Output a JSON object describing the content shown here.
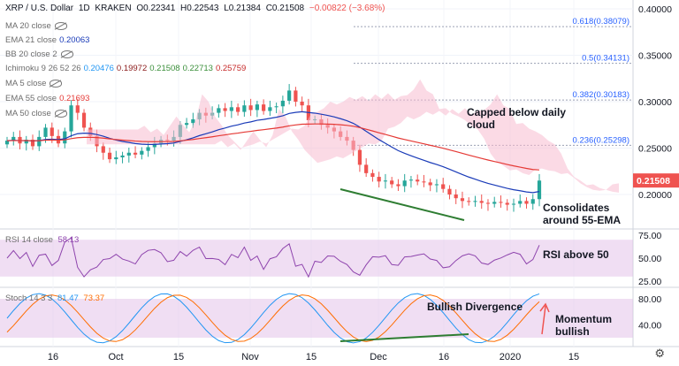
{
  "header": {
    "symbol": "XRP / U.S. Dollar",
    "interval": "1D",
    "exchange": "KRAKEN",
    "o": "O0.22341",
    "h": "H0.22543",
    "l": "L0.21384",
    "c": "C0.21508",
    "change": "−0.00822 (−3.68%)"
  },
  "legend": [
    {
      "label": "MA 20 close",
      "value": "",
      "hidden": true,
      "color": "#2196f3"
    },
    {
      "label": "EMA 21 close",
      "value": "0.20063",
      "hidden": false,
      "color": "#1a3bb8"
    },
    {
      "label": "BB 20 close 2",
      "value": "",
      "hidden": true,
      "color": "#2196f3"
    },
    {
      "label": "Ichimoku 9 26 52 26",
      "values": [
        "0.20476",
        "0.19972",
        "0.21508",
        "0.22713",
        "0.25759"
      ],
      "colors": [
        "#2196f3",
        "#8b1a1a",
        "#3a8f3a",
        "#3a8f3a",
        "#c62828"
      ],
      "hidden": false
    },
    {
      "label": "MA 5 close",
      "value": "",
      "hidden": true,
      "color": "#2196f3"
    },
    {
      "label": "EMA 55 close",
      "value": "0.21693",
      "hidden": false,
      "color": "#e53935"
    },
    {
      "label": "MA 50 close",
      "value": "",
      "hidden": true,
      "color": "#2196f3"
    }
  ],
  "rsi_legend": {
    "label": "RSI 14 close",
    "value": "58.13",
    "color": "#8e44ad"
  },
  "stoch_legend": {
    "label": "Stoch 14 3 3",
    "k": "81.47",
    "d": "73.37",
    "k_color": "#2196f3",
    "d_color": "#ff6d00"
  },
  "annotations": {
    "capped": "Capped below daily cloud",
    "consolidates": "Consolidates around 55-EMA",
    "rsi": "RSI above 50",
    "divergence": "Bullish Divergence",
    "momentum": "Momentum bullish"
  },
  "last_price": "0.21508",
  "colors": {
    "up": "#26a69a",
    "down": "#ef5350",
    "cloud_bull": "#a5d6a7",
    "cloud_bear": "#f8bbd0",
    "rsi_band": "#e1bee7"
  },
  "chart_data": [
    {
      "type": "candlestick",
      "title": "XRP / U.S. Dollar · 1D · KRAKEN",
      "ylim": [
        0.18,
        0.4
      ],
      "y_ticks": [
        "0.40000",
        "0.35000",
        "0.30000",
        "0.25000",
        "0.20000"
      ],
      "x_ticks": [
        "16",
        "Oct",
        "15",
        "Nov",
        "15",
        "Dec",
        "16",
        "2020",
        "15"
      ],
      "fib_levels": [
        {
          "label": "0.618(0.38079)",
          "value": 0.38079
        },
        {
          "label": "0.5(0.34131)",
          "value": 0.34131
        },
        {
          "label": "0.382(0.30183)",
          "value": 0.30183
        },
        {
          "label": "0.236(0.25298)",
          "value": 0.25298
        }
      ],
      "close_approx": [
        0.258,
        0.262,
        0.255,
        0.259,
        0.252,
        0.262,
        0.272,
        0.263,
        0.255,
        0.268,
        0.296,
        0.288,
        0.272,
        0.263,
        0.252,
        0.245,
        0.238,
        0.24,
        0.242,
        0.245,
        0.243,
        0.247,
        0.251,
        0.255,
        0.259,
        0.258,
        0.262,
        0.275,
        0.277,
        0.281,
        0.288,
        0.285,
        0.288,
        0.293,
        0.29,
        0.294,
        0.289,
        0.296,
        0.291,
        0.297,
        0.29,
        0.294,
        0.295,
        0.301,
        0.312,
        0.3,
        0.296,
        0.28,
        0.281,
        0.275,
        0.272,
        0.268,
        0.262,
        0.258,
        0.248,
        0.232,
        0.223,
        0.219,
        0.214,
        0.215,
        0.211,
        0.209,
        0.215,
        0.216,
        0.214,
        0.213,
        0.21,
        0.211,
        0.206,
        0.2,
        0.196,
        0.193,
        0.192,
        0.193,
        0.191,
        0.19,
        0.192,
        0.191,
        0.189,
        0.19,
        0.193,
        0.19,
        0.195,
        0.215
      ],
      "annotations": [
        "Capped below daily cloud",
        "Consolidates around 55-EMA"
      ]
    },
    {
      "type": "line",
      "title": "RSI 14 close",
      "ylim": [
        20,
        75
      ],
      "y_ticks": [
        "75.00",
        "50.00",
        "25.00"
      ],
      "bands": [
        30,
        70
      ],
      "last": 58.13,
      "annotations": [
        "RSI above 50"
      ]
    },
    {
      "type": "line",
      "title": "Stoch 14 3 3",
      "ylim": [
        0,
        100
      ],
      "y_ticks": [
        "80.00",
        "40.00"
      ],
      "bands": [
        20,
        80
      ],
      "series": [
        {
          "name": "%K",
          "last": 81.47
        },
        {
          "name": "%D",
          "last": 73.37
        }
      ],
      "annotations": [
        "Bullish Divergence",
        "Momentum bullish"
      ]
    }
  ]
}
